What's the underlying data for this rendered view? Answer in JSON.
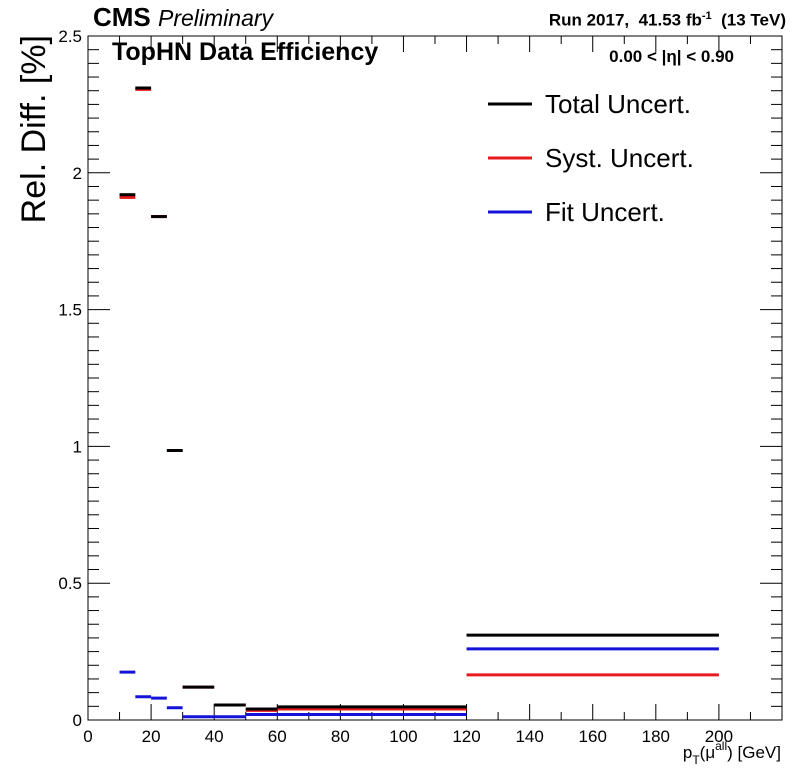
{
  "header": {
    "experiment": "CMS",
    "status": "Preliminary",
    "run_label": "Run 2017,",
    "lumi_value": "41.53 fb",
    "lumi_exp": "-1",
    "energy": "(13 TeV)"
  },
  "chart_data": {
    "type": "scatter",
    "title": "TopHN Data Efficiency",
    "annotation": "0.00 < |η| < 0.90",
    "ylabel": "Rel. Diff. [%]",
    "xlabel": {
      "base": "p",
      "sub": "T",
      "open": "(μ",
      "sup": "all",
      "close": ") [GeV]"
    },
    "xlim": [
      0,
      220
    ],
    "ylim": [
      0,
      2.5
    ],
    "x_ticks": [
      "0",
      "20",
      "40",
      "60",
      "80",
      "100",
      "120",
      "140",
      "160",
      "180",
      "200"
    ],
    "y_ticks": [
      "0",
      "0.5",
      "1",
      "1.5",
      "2",
      "2.5"
    ],
    "grid": false,
    "legend_position": "top-right",
    "colors": {
      "total": "#000000",
      "syst": "#e8191c",
      "fit": "#1414d8"
    },
    "bins": [
      [
        10,
        15
      ],
      [
        15,
        20
      ],
      [
        20,
        25
      ],
      [
        25,
        30
      ],
      [
        30,
        40
      ],
      [
        40,
        50
      ],
      [
        50,
        60
      ],
      [
        60,
        120
      ],
      [
        120,
        200
      ]
    ],
    "series": [
      {
        "name": "Total Uncert.",
        "key": "total",
        "values": [
          1.92,
          2.31,
          1.84,
          0.985,
          0.12,
          0.055,
          0.04,
          0.048,
          0.31
        ]
      },
      {
        "name": "Syst. Uncert.",
        "key": "syst",
        "values": [
          1.91,
          2.305,
          1.84,
          0.985,
          0.12,
          0.055,
          0.035,
          0.04,
          0.165
        ]
      },
      {
        "name": "Fit Uncert.",
        "key": "fit",
        "values": [
          0.175,
          0.085,
          0.08,
          0.045,
          0.012,
          0.012,
          0.02,
          0.02,
          0.26
        ]
      }
    ]
  }
}
